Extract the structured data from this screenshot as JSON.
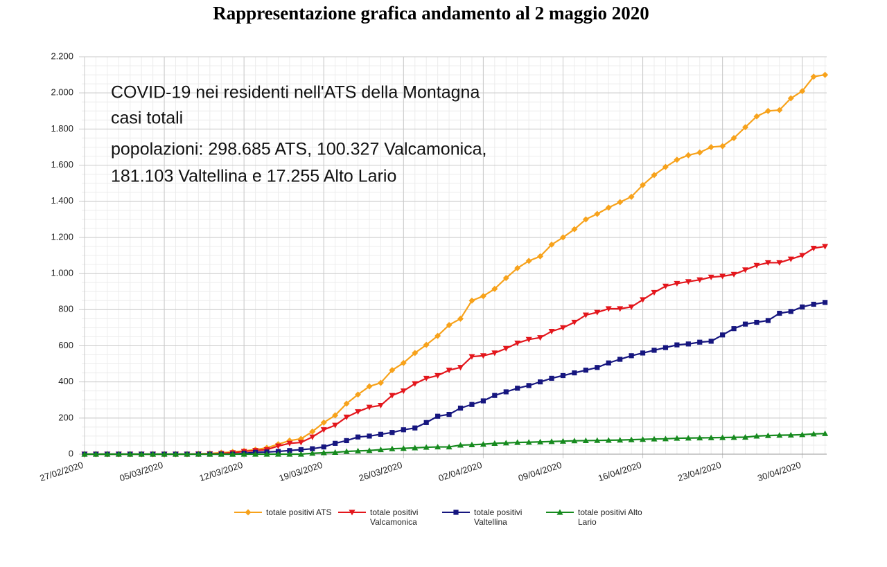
{
  "chart_data": {
    "type": "line",
    "title": "Rappresentazione grafica andamento al 2 maggio 2020",
    "annotation": [
      "COVID-19 nei residenti nell'ATS della Montagna",
      "casi totali",
      "popolazioni: 298.685 ATS, 100.327 Valcamonica,",
      "181.103 Valtellina e 17.255 Alto Lario"
    ],
    "categories": [
      "27/02/2020",
      null,
      null,
      null,
      null,
      null,
      null,
      "05/03/2020",
      null,
      null,
      null,
      null,
      null,
      null,
      "12/03/2020",
      null,
      null,
      null,
      null,
      null,
      null,
      "19/03/2020",
      null,
      null,
      null,
      null,
      null,
      null,
      "26/03/2020",
      null,
      null,
      null,
      null,
      null,
      null,
      "02/04/2020",
      null,
      null,
      null,
      null,
      null,
      null,
      "09/04/2020",
      null,
      null,
      null,
      null,
      null,
      null,
      "16/04/2020",
      null,
      null,
      null,
      null,
      null,
      null,
      "23/04/2020",
      null,
      null,
      null,
      null,
      null,
      null,
      "30/04/2020",
      null,
      null
    ],
    "series": [
      {
        "name": "totale positivi ATS",
        "color": "#f7a21b",
        "marker": "diamond",
        "values": [
          0,
          0,
          0,
          0,
          0,
          0,
          0,
          0,
          0,
          0,
          2,
          4,
          8,
          12,
          18,
          25,
          35,
          55,
          75,
          85,
          125,
          175,
          215,
          280,
          330,
          375,
          395,
          465,
          505,
          560,
          605,
          655,
          715,
          750,
          850,
          875,
          915,
          975,
          1030,
          1070,
          1095,
          1160,
          1200,
          1245,
          1300,
          1330,
          1365,
          1395,
          1425,
          1490,
          1545,
          1590,
          1630,
          1655,
          1670,
          1700,
          1705,
          1750,
          1810,
          1870,
          1900,
          1905,
          1970,
          2010,
          2090,
          2100
        ]
      },
      {
        "name": "totale positivi Valcamonica",
        "color": "#e3161c",
        "marker": "triangle-down",
        "values": [
          0,
          0,
          0,
          0,
          0,
          0,
          0,
          0,
          0,
          0,
          1,
          2,
          4,
          8,
          15,
          20,
          25,
          45,
          60,
          65,
          95,
          135,
          160,
          205,
          235,
          260,
          270,
          325,
          350,
          390,
          420,
          435,
          465,
          480,
          540,
          545,
          560,
          585,
          615,
          635,
          645,
          680,
          700,
          730,
          770,
          785,
          805,
          805,
          815,
          855,
          895,
          930,
          945,
          955,
          965,
          980,
          985,
          995,
          1020,
          1045,
          1060,
          1060,
          1080,
          1100,
          1140,
          1150
        ]
      },
      {
        "name": "totale positivi Valtellina",
        "color": "#16167f",
        "marker": "square",
        "values": [
          0,
          0,
          0,
          0,
          0,
          0,
          0,
          0,
          0,
          0,
          0,
          0,
          0,
          0,
          5,
          10,
          12,
          15,
          20,
          25,
          30,
          40,
          60,
          75,
          95,
          100,
          110,
          120,
          135,
          145,
          175,
          210,
          220,
          255,
          275,
          295,
          325,
          345,
          365,
          380,
          400,
          420,
          435,
          450,
          465,
          480,
          505,
          525,
          545,
          560,
          575,
          590,
          605,
          610,
          620,
          625,
          660,
          695,
          720,
          730,
          740,
          780,
          790,
          815,
          830,
          840
        ]
      },
      {
        "name": "totale positivi Alto Lario",
        "color": "#168a1e",
        "marker": "triangle-up",
        "values": [
          0,
          0,
          0,
          0,
          0,
          0,
          0,
          0,
          0,
          0,
          0,
          0,
          0,
          0,
          0,
          0,
          0,
          0,
          0,
          0,
          5,
          8,
          10,
          15,
          18,
          20,
          25,
          30,
          32,
          35,
          38,
          40,
          40,
          50,
          52,
          55,
          60,
          62,
          65,
          66,
          68,
          70,
          72,
          74,
          75,
          76,
          77,
          78,
          80,
          82,
          84,
          85,
          88,
          89,
          90,
          91,
          92,
          93,
          94,
          100,
          103,
          105,
          106,
          108,
          112,
          114
        ]
      }
    ],
    "ylim": [
      0,
      2200
    ],
    "yticks": [
      0,
      {
        "value": 200,
        "label": "200"
      },
      {
        "value": 400,
        "label": "400"
      },
      {
        "value": 600,
        "label": "600"
      },
      {
        "value": 800,
        "label": "800"
      },
      {
        "value": 1000,
        "label": "1.000"
      },
      {
        "value": 1200,
        "label": "1.200"
      },
      {
        "value": 1400,
        "label": "1.400"
      },
      {
        "value": 1600,
        "label": "1.600"
      },
      {
        "value": 1800,
        "label": "1.800"
      },
      {
        "value": 2000,
        "label": "2.000"
      },
      {
        "value": 2200,
        "label": "2.200"
      }
    ],
    "grid": true,
    "legend": "bottom"
  }
}
